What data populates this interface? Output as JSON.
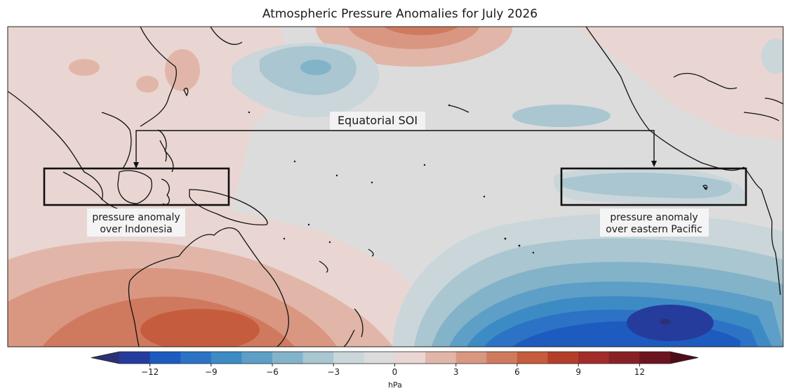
{
  "title": "Atmospheric Pressure Anomalies for July 2026",
  "annotations": {
    "soi_label": "Equatorial SOI",
    "box_west_line1": "pressure anomaly",
    "box_west_line2": "over Indonesia",
    "box_east_line1": "pressure anomaly",
    "box_east_line2": "over eastern Pacific"
  },
  "colorbar": {
    "unit": "hPa",
    "ticks": [
      "−12",
      "−9",
      "−6",
      "−3",
      "0",
      "3",
      "6",
      "9",
      "12"
    ],
    "levels": [
      -13.5,
      -12,
      -10.5,
      -9,
      -7.5,
      -6,
      -4.5,
      -3,
      -1.5,
      0,
      1.5,
      3,
      4.5,
      6,
      7.5,
      9,
      10.5,
      12,
      13.5
    ],
    "colors": [
      "#2b3173",
      "#263c9d",
      "#1d5bbf",
      "#2c73c6",
      "#3d8bc4",
      "#5d9fc6",
      "#83b3c9",
      "#a9c6d1",
      "#cad6da",
      "#dcdcdc",
      "#e9d6d2",
      "#e1b6a8",
      "#d99782",
      "#cf7a5f",
      "#c65c3e",
      "#b53e2b",
      "#a22c2a",
      "#882126",
      "#6d1420",
      "#4f0d18"
    ]
  }
}
